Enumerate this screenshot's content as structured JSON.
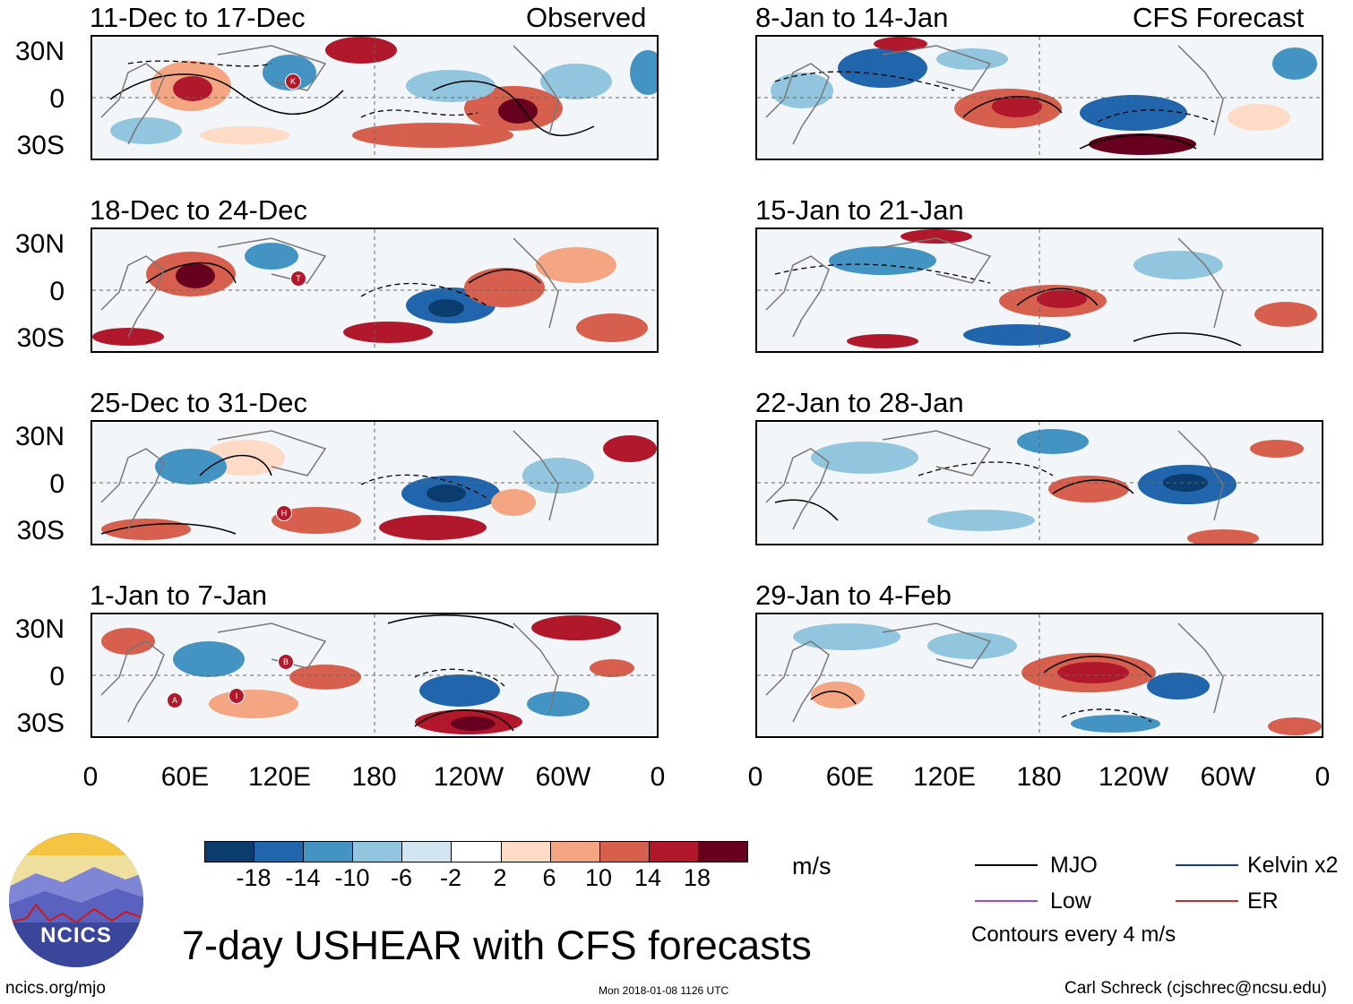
{
  "labels": {
    "observed": "Observed",
    "forecast": "CFS Forecast",
    "units": "m/s",
    "main_title": "7-day USHEAR with CFS forecasts",
    "site": "ncics.org/mjo",
    "timestamp": "Mon 2018-01-08 1126 UTC",
    "author": "Carl Schreck (cjschrec@ncsu.edu)",
    "logo_text": "NCICS",
    "contour_note": "Contours every 4 m/s"
  },
  "lat_labels": [
    "30N",
    "0",
    "30S"
  ],
  "lon_labels": [
    "0",
    "60E",
    "120E",
    "180",
    "120W",
    "60W",
    "0"
  ],
  "panels_observed": [
    {
      "title": "11-Dec to 17-Dec",
      "storms": [
        "K"
      ]
    },
    {
      "title": "18-Dec to 24-Dec",
      "storms": [
        "T"
      ]
    },
    {
      "title": "25-Dec to 31-Dec",
      "storms": [
        "H"
      ]
    },
    {
      "title": "1-Jan to 7-Jan",
      "storms": [
        "B",
        "A",
        "I"
      ]
    }
  ],
  "panels_forecast": [
    {
      "title": "8-Jan to 14-Jan"
    },
    {
      "title": "15-Jan to 21-Jan"
    },
    {
      "title": "22-Jan to 28-Jan"
    },
    {
      "title": "29-Jan to 4-Feb"
    }
  ],
  "colorbar": {
    "ticks": [
      "-18",
      "-14",
      "-10",
      "-6",
      "-2",
      "2",
      "6",
      "10",
      "14",
      "18"
    ],
    "colors": [
      "#0b3c6e",
      "#2166ac",
      "#4393c3",
      "#92c5de",
      "#d1e5f0",
      "#ffffff",
      "#fddbc7",
      "#f4a582",
      "#d6604d",
      "#b2182b",
      "#67001f"
    ]
  },
  "legend": [
    {
      "label": "MJO",
      "color": "#000000"
    },
    {
      "label": "Kelvin x2",
      "color": "#1f2fd8"
    },
    {
      "label": "Low",
      "color": "#9b45e0"
    },
    {
      "label": "ER",
      "color": "#e0241b"
    }
  ]
}
